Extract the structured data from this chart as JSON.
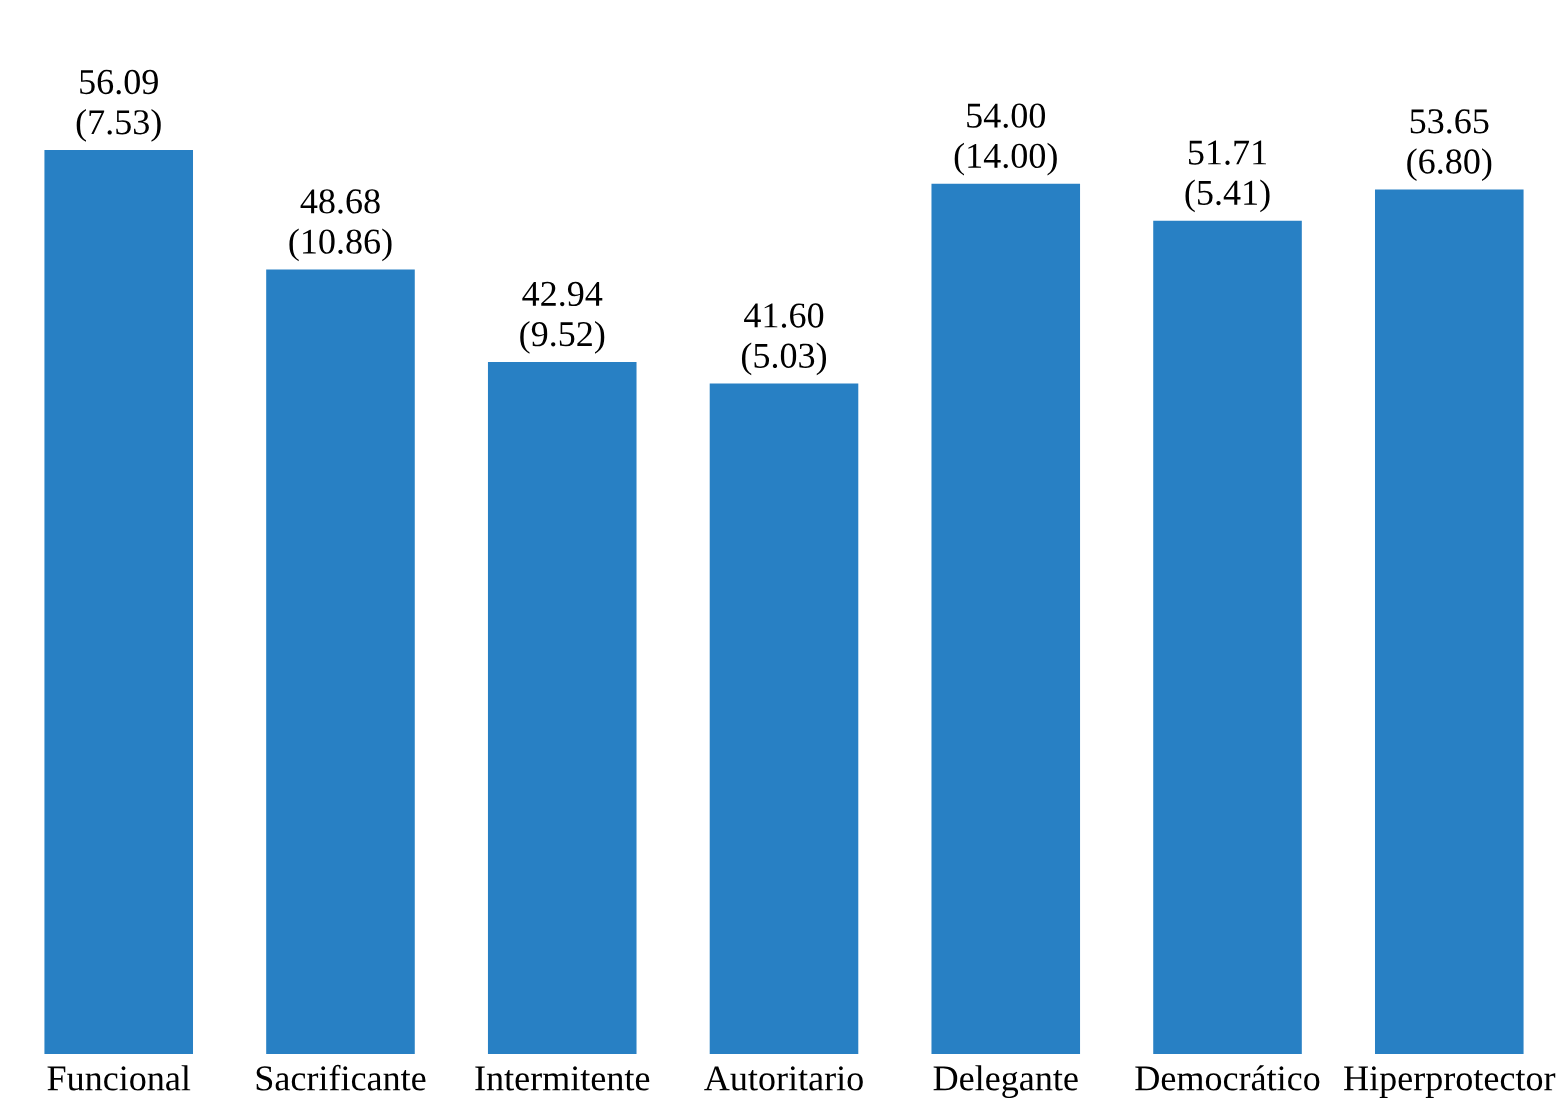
{
  "chart_data": {
    "type": "bar",
    "categories": [
      "Funcional",
      "Sacrificante",
      "Intermitente",
      "Autoritario",
      "Delegante",
      "Democrático",
      "Hiperprotector"
    ],
    "values": [
      56.09,
      48.68,
      42.94,
      41.6,
      54.0,
      51.71,
      53.65
    ],
    "value_labels": [
      "56.09\n(7.53)",
      "48.68\n(10.86)",
      "42.94\n(9.52)",
      "41.60\n(5.03)",
      "54.00\n(14.00)",
      "51.71\n(5.41)",
      "53.65\n(6.80)"
    ],
    "color": "#2880c4",
    "grid": false,
    "legend": false
  }
}
